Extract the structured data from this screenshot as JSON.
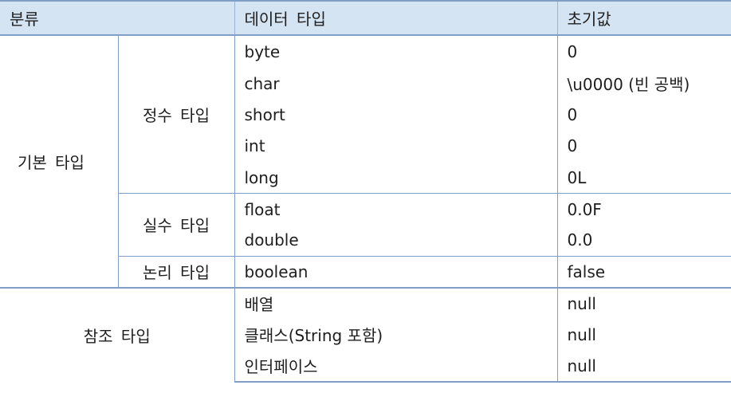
{
  "header": {
    "col_category": "분류",
    "col_data_type": "데이터 타입",
    "col_default": "초기값"
  },
  "groups": {
    "primitive": "기본 타입",
    "reference": "참조 타입"
  },
  "subgroups": {
    "integer": "정수 타입",
    "float": "실수 타입",
    "logical": "논리 타입"
  },
  "rows": [
    {
      "type": "byte",
      "default": "0"
    },
    {
      "type": "char",
      "default": "\\u0000 (빈 공백)"
    },
    {
      "type": "short",
      "default": "0"
    },
    {
      "type": "int",
      "default": "0"
    },
    {
      "type": "long",
      "default": "0L"
    },
    {
      "type": "float",
      "default": "0.0F"
    },
    {
      "type": "double",
      "default": "0.0"
    },
    {
      "type": "boolean",
      "default": "false"
    },
    {
      "type": "배열",
      "default": "null"
    },
    {
      "type": "클래스(String 포함)",
      "default": "null"
    },
    {
      "type": "인터페이스",
      "default": "null"
    }
  ]
}
